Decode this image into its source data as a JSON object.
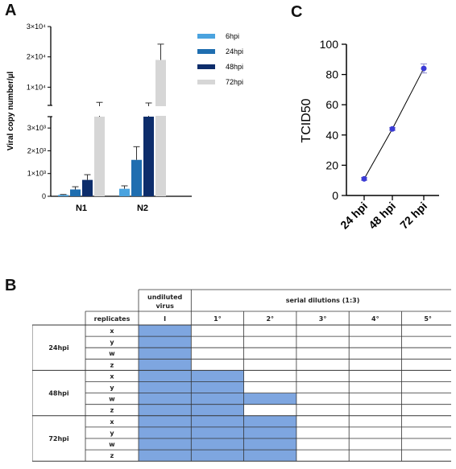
{
  "panels": {
    "a": "A",
    "b": "B",
    "c": "C"
  },
  "chart_data": [
    {
      "panel": "A",
      "type": "bar",
      "categories": [
        "N1",
        "N2"
      ],
      "ylabel": "Viral copy number/µl",
      "axis_break": true,
      "ylim_lower": [
        0,
        3500
      ],
      "ylim_upper": [
        4000,
        30000
      ],
      "yticks_lower": [
        "0",
        "1×10³",
        "2×10³",
        "3×10³"
      ],
      "yticks_upper": [
        "1×10⁴",
        "2×10⁴",
        "3×10⁴"
      ],
      "legend_position": "top-right",
      "series": [
        {
          "name": "6hpi",
          "color": "#4aa3df",
          "values": [
            60,
            330
          ],
          "errors": [
            20,
            130
          ]
        },
        {
          "name": "24hpi",
          "color": "#1f6eb0",
          "values": [
            300,
            1600
          ],
          "errors": [
            120,
            580
          ]
        },
        {
          "name": "48hpi",
          "color": "#0d2d6b",
          "values": [
            720,
            3500
          ],
          "errors": [
            230,
            1300
          ]
        },
        {
          "name": "72hpi",
          "color": "#d6d6d6",
          "values": [
            3500,
            19000
          ],
          "errors": [
            1500,
            5200
          ]
        }
      ]
    },
    {
      "panel": "C",
      "type": "line",
      "x": [
        "24 hpi",
        "48 hpi",
        "72 hpi"
      ],
      "y": [
        11,
        44,
        84
      ],
      "errors": [
        1,
        1,
        3
      ],
      "ylabel": "TCID50",
      "ylim": [
        0,
        100
      ],
      "yticks": [
        "0",
        "20",
        "40",
        "60",
        "80",
        "100"
      ],
      "marker_color": "#3b3bd6"
    }
  ],
  "table": {
    "col_header_undiluted": "undiluted virus",
    "col_header_serial": "serial dilutions (1:3)",
    "replicates_label": "replicates",
    "dilutions": [
      "I",
      "1°",
      "2°",
      "3°",
      "4°",
      "5°"
    ],
    "groups": [
      {
        "label": "24hpi",
        "rows": [
          {
            "rep": "x",
            "pos": [
              1,
              0,
              0,
              0,
              0,
              0
            ]
          },
          {
            "rep": "y",
            "pos": [
              1,
              0,
              0,
              0,
              0,
              0
            ]
          },
          {
            "rep": "w",
            "pos": [
              1,
              0,
              0,
              0,
              0,
              0
            ]
          },
          {
            "rep": "z",
            "pos": [
              1,
              0,
              0,
              0,
              0,
              0
            ]
          }
        ]
      },
      {
        "label": "48hpi",
        "rows": [
          {
            "rep": "x",
            "pos": [
              1,
              1,
              0,
              0,
              0,
              0
            ]
          },
          {
            "rep": "y",
            "pos": [
              1,
              1,
              0,
              0,
              0,
              0
            ]
          },
          {
            "rep": "w",
            "pos": [
              1,
              1,
              1,
              0,
              0,
              0
            ]
          },
          {
            "rep": "z",
            "pos": [
              1,
              1,
              0,
              0,
              0,
              0
            ]
          }
        ]
      },
      {
        "label": "72hpi",
        "rows": [
          {
            "rep": "x",
            "pos": [
              1,
              1,
              1,
              0,
              0,
              0
            ]
          },
          {
            "rep": "y",
            "pos": [
              1,
              1,
              1,
              0,
              0,
              0
            ]
          },
          {
            "rep": "w",
            "pos": [
              1,
              1,
              1,
              0,
              0,
              0
            ]
          },
          {
            "rep": "z",
            "pos": [
              1,
              1,
              1,
              0,
              0,
              0
            ]
          }
        ]
      }
    ],
    "positive_color": "#7ea6e0"
  }
}
